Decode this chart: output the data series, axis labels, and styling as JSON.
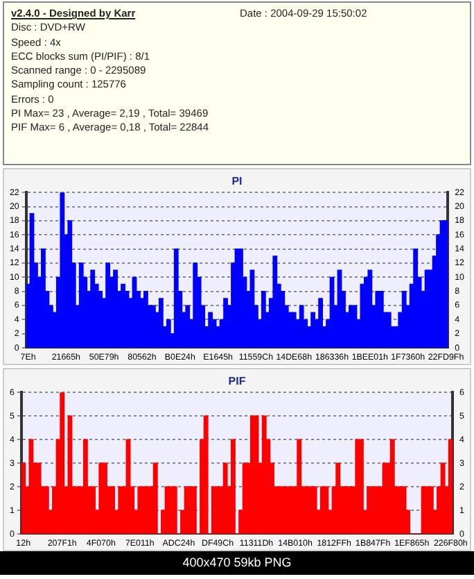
{
  "chart_data": [
    {
      "type": "other",
      "title": "v2.4.0 - Designed by Karr",
      "annotations": [
        "Date : 2004-09-29 15:50:02",
        "Disc : DVD+RW",
        "Speed : 4x",
        "ECC blocks sum (PI/PIF) : 8/1",
        "Scanned range : 0 - 2295089",
        "Sampling count : 125776",
        "Errors : 0",
        "PI Max= 23 , Average= 2,19 , Total= 39469",
        "PIF Max= 6 , Average= 0,18 , Total= 22844"
      ]
    },
    {
      "type": "bar",
      "title": "PI",
      "color": "#0000ff",
      "grid": "y",
      "legend": false,
      "categories": [
        "7Eh",
        null,
        null,
        null,
        null,
        null,
        null,
        null,
        null,
        null,
        "21665h",
        null,
        null,
        null,
        null,
        null,
        null,
        null,
        null,
        null,
        "50E79h",
        null,
        null,
        null,
        null,
        null,
        null,
        null,
        null,
        null,
        "80562h",
        null,
        null,
        null,
        null,
        null,
        null,
        null,
        null,
        null,
        "B0E24h",
        null,
        null,
        null,
        null,
        null,
        null,
        null,
        null,
        null,
        "E1645h",
        null,
        null,
        null,
        null,
        null,
        null,
        null,
        null,
        null,
        "11559Ch",
        null,
        null,
        null,
        null,
        null,
        null,
        null,
        null,
        null,
        "14DE68h",
        null,
        null,
        null,
        null,
        null,
        null,
        null,
        null,
        null,
        "186336h",
        null,
        null,
        null,
        null,
        null,
        null,
        null,
        null,
        null,
        "1BEE01h",
        null,
        null,
        null,
        null,
        null,
        null,
        null,
        null,
        null,
        "1F7360h",
        null,
        null,
        null,
        null,
        null,
        null,
        null,
        null,
        null,
        "22FD9Fh"
      ],
      "values": [
        9,
        19,
        12,
        10,
        14,
        8,
        6,
        5,
        10,
        22,
        16,
        18,
        12,
        6,
        12,
        10,
        8,
        11,
        9,
        8,
        7,
        12,
        10,
        11,
        8,
        9,
        8,
        7,
        10,
        8,
        7,
        8,
        6,
        6,
        5,
        7,
        3,
        4,
        2,
        14,
        8,
        5,
        6,
        4,
        12,
        10,
        6,
        3,
        5,
        4,
        3,
        4,
        7,
        6,
        12,
        14,
        14,
        10,
        8,
        11,
        6,
        4,
        8,
        5,
        7,
        13,
        9,
        8,
        6,
        5,
        5,
        4,
        6,
        4,
        3,
        5,
        4,
        7,
        3,
        4,
        10,
        6,
        11,
        8,
        5,
        6,
        6,
        4,
        9,
        10,
        11,
        6,
        8,
        8,
        5,
        5,
        3,
        3,
        5,
        8,
        6,
        9,
        14,
        10,
        8,
        11,
        11,
        13,
        16,
        18,
        18
      ],
      "ylim": [
        0,
        22
      ],
      "yticks": [
        0,
        2,
        4,
        6,
        8,
        10,
        12,
        14,
        16,
        18,
        20,
        22
      ],
      "y2lim": [
        0,
        22
      ],
      "y2ticks": [
        0,
        2,
        4,
        6,
        8,
        10,
        12,
        14,
        16,
        18,
        20,
        22
      ]
    },
    {
      "type": "bar",
      "title": "PIF",
      "color": "#ff0000",
      "grid": "y",
      "legend": false,
      "categories": [
        "12h",
        null,
        null,
        null,
        null,
        null,
        null,
        null,
        null,
        null,
        "207F1h",
        null,
        null,
        null,
        null,
        null,
        null,
        null,
        null,
        null,
        "4F070h",
        null,
        null,
        null,
        null,
        null,
        null,
        null,
        null,
        null,
        "7E011h",
        null,
        null,
        null,
        null,
        null,
        null,
        null,
        null,
        null,
        "ADC24h",
        null,
        null,
        null,
        null,
        null,
        null,
        null,
        null,
        null,
        "DF49Ch",
        null,
        null,
        null,
        null,
        null,
        null,
        null,
        null,
        null,
        "11311Dh",
        null,
        null,
        null,
        null,
        null,
        null,
        null,
        null,
        null,
        "14B010h",
        null,
        null,
        null,
        null,
        null,
        null,
        null,
        null,
        null,
        "1812FFh",
        null,
        null,
        null,
        null,
        null,
        null,
        null,
        null,
        null,
        "1B847Fh",
        null,
        null,
        null,
        null,
        null,
        null,
        null,
        null,
        null,
        "1EF865h",
        null,
        null,
        null,
        null,
        null,
        null,
        null,
        null,
        null,
        "226F80h"
      ],
      "values": [
        3,
        2,
        4,
        3,
        3,
        2,
        2,
        1,
        2,
        4,
        6,
        2,
        5,
        2,
        2,
        2,
        4,
        2,
        2,
        1,
        3,
        3,
        2,
        2,
        1,
        2,
        2,
        4,
        2,
        1,
        2,
        2,
        2,
        2,
        3,
        0,
        1,
        2,
        2,
        2,
        0,
        1,
        2,
        2,
        2,
        0,
        4,
        5,
        0,
        2,
        2,
        2,
        3,
        2,
        4,
        0,
        1,
        3,
        3,
        5,
        5,
        3,
        5,
        4,
        3,
        2,
        2,
        2,
        2,
        2,
        2,
        4,
        2,
        2,
        2,
        2,
        1,
        2,
        2,
        1,
        2,
        3,
        2,
        2,
        2,
        2,
        4,
        4,
        1,
        2,
        2,
        2,
        2,
        3,
        3,
        4,
        2,
        2,
        2,
        1,
        0,
        0,
        0,
        2,
        2,
        2,
        1,
        2,
        3,
        2,
        4
      ],
      "ylim": [
        0,
        6
      ],
      "yticks": [
        0,
        1,
        2,
        3,
        4,
        5,
        6
      ],
      "y2lim": [
        0,
        6
      ],
      "y2ticks": [
        0,
        1,
        2,
        3,
        4,
        5,
        6
      ],
      "annotations": [
        "400x470 59kb PNG"
      ]
    }
  ]
}
